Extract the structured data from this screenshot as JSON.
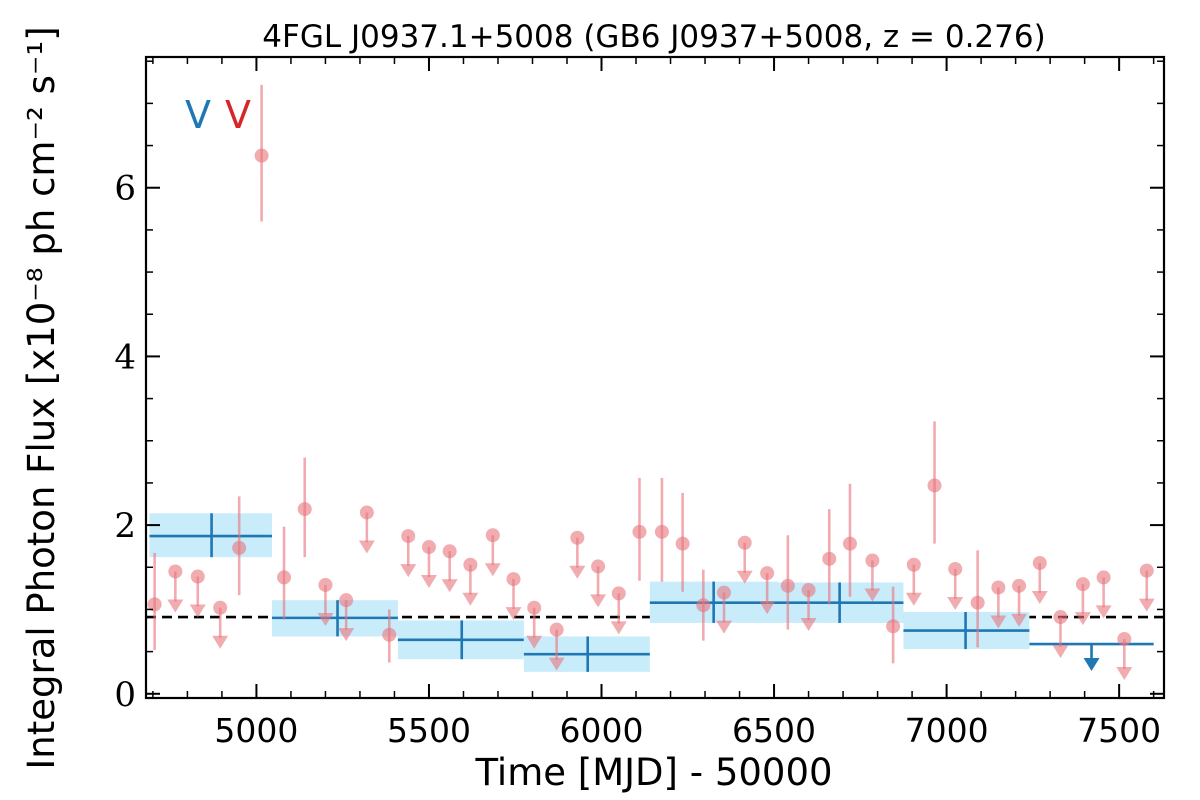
{
  "chart_data": {
    "type": "scatter",
    "title": "4FGL J0937.1+5008 (GB6 J0937+5008, z = 0.276)",
    "xlabel": "Time [MJD] - 50000",
    "ylabel": "Integral Photon Flux [x10⁻⁸ ph cm⁻² s⁻¹]",
    "xlim": [
      4680,
      7630
    ],
    "ylim": [
      -0.05,
      7.55
    ],
    "xticks": [
      "5000",
      "5500",
      "6000",
      "6500",
      "7000",
      "7500"
    ],
    "xtick_values": [
      5000,
      5500,
      6000,
      6500,
      7000,
      7500
    ],
    "yticks": [
      "0",
      "2",
      "4",
      "6"
    ],
    "ytick_values": [
      0,
      2,
      4,
      6
    ],
    "reference_level": 0.91,
    "markers": [
      {
        "text": "V",
        "color": "#1f77b4"
      },
      {
        "text": "V",
        "color": "#d62728"
      }
    ],
    "series": [
      {
        "color": "#1f77b4",
        "band_color": "#c9ecfb",
        "bins": [
          {
            "x": 4870,
            "x_lo": 4690,
            "x_hi": 5045,
            "y": 1.87,
            "y_lo": 1.62,
            "y_hi": 2.14
          },
          {
            "x": 5235,
            "x_lo": 5045,
            "x_hi": 5410,
            "y": 0.9,
            "y_lo": 0.68,
            "y_hi": 1.11
          },
          {
            "x": 5595,
            "x_lo": 5410,
            "x_hi": 5775,
            "y": 0.64,
            "y_lo": 0.41,
            "y_hi": 0.87
          },
          {
            "x": 5960,
            "x_lo": 5775,
            "x_hi": 6140,
            "y": 0.47,
            "y_lo": 0.26,
            "y_hi": 0.68
          },
          {
            "x": 6325,
            "x_lo": 6140,
            "x_hi": 6510,
            "y": 1.08,
            "y_lo": 0.84,
            "y_hi": 1.33
          },
          {
            "x": 6690,
            "x_lo": 6510,
            "x_hi": 6875,
            "y": 1.08,
            "y_lo": 0.84,
            "y_hi": 1.32
          },
          {
            "x": 7055,
            "x_lo": 6875,
            "x_hi": 7240,
            "y": 0.75,
            "y_lo": 0.53,
            "y_hi": 0.97
          }
        ],
        "upper_limits": [
          {
            "x": 7420,
            "x_lo": 7240,
            "x_hi": 7600,
            "y": 0.59
          }
        ]
      },
      {
        "color": "#e8747c",
        "points": [
          {
            "x": 4705,
            "y": 1.06,
            "y_lo": 0.52,
            "y_hi": 1.67
          },
          {
            "x": 4950,
            "y": 1.73,
            "y_lo": 1.17,
            "y_hi": 2.34
          },
          {
            "x": 5015,
            "y": 6.38,
            "y_lo": 5.6,
            "y_hi": 7.22
          },
          {
            "x": 5080,
            "y": 1.38,
            "y_lo": 0.88,
            "y_hi": 1.98
          },
          {
            "x": 5140,
            "y": 2.19,
            "y_lo": 1.62,
            "y_hi": 2.8
          },
          {
            "x": 5385,
            "y": 0.7,
            "y_lo": 0.37,
            "y_hi": 1.0
          },
          {
            "x": 6110,
            "y": 1.92,
            "y_lo": 1.34,
            "y_hi": 2.56
          },
          {
            "x": 6175,
            "y": 1.92,
            "y_lo": 1.33,
            "y_hi": 2.56
          },
          {
            "x": 6235,
            "y": 1.78,
            "y_lo": 1.21,
            "y_hi": 2.38
          },
          {
            "x": 6295,
            "y": 1.05,
            "y_lo": 0.63,
            "y_hi": 1.47
          },
          {
            "x": 6540,
            "y": 1.28,
            "y_lo": 0.76,
            "y_hi": 1.88
          },
          {
            "x": 6660,
            "y": 1.6,
            "y_lo": 1.06,
            "y_hi": 2.19
          },
          {
            "x": 6720,
            "y": 1.78,
            "y_lo": 1.15,
            "y_hi": 2.49
          },
          {
            "x": 6845,
            "y": 0.8,
            "y_lo": 0.36,
            "y_hi": 1.27
          },
          {
            "x": 6965,
            "y": 2.47,
            "y_lo": 1.78,
            "y_hi": 3.23
          },
          {
            "x": 7090,
            "y": 1.08,
            "y_lo": 0.55,
            "y_hi": 1.7
          }
        ],
        "upper_limits": [
          {
            "x": 4765,
            "y": 1.45
          },
          {
            "x": 4830,
            "y": 1.39
          },
          {
            "x": 4895,
            "y": 1.02
          },
          {
            "x": 5200,
            "y": 1.29
          },
          {
            "x": 5260,
            "y": 1.11
          },
          {
            "x": 5320,
            "y": 2.15
          },
          {
            "x": 5440,
            "y": 1.87
          },
          {
            "x": 5500,
            "y": 1.74
          },
          {
            "x": 5560,
            "y": 1.69
          },
          {
            "x": 5620,
            "y": 1.53
          },
          {
            "x": 5685,
            "y": 1.88
          },
          {
            "x": 5745,
            "y": 1.36
          },
          {
            "x": 5805,
            "y": 1.02
          },
          {
            "x": 5870,
            "y": 0.76
          },
          {
            "x": 5930,
            "y": 1.85
          },
          {
            "x": 5990,
            "y": 1.51
          },
          {
            "x": 6050,
            "y": 1.19
          },
          {
            "x": 6355,
            "y": 1.2
          },
          {
            "x": 6415,
            "y": 1.79
          },
          {
            "x": 6480,
            "y": 1.43
          },
          {
            "x": 6600,
            "y": 1.23
          },
          {
            "x": 6785,
            "y": 1.58
          },
          {
            "x": 6905,
            "y": 1.53
          },
          {
            "x": 7025,
            "y": 1.48
          },
          {
            "x": 7150,
            "y": 1.26
          },
          {
            "x": 7210,
            "y": 1.28
          },
          {
            "x": 7270,
            "y": 1.55
          },
          {
            "x": 7330,
            "y": 0.91
          },
          {
            "x": 7395,
            "y": 1.3
          },
          {
            "x": 7455,
            "y": 1.38
          },
          {
            "x": 7515,
            "y": 0.65
          },
          {
            "x": 7580,
            "y": 1.46
          }
        ]
      }
    ]
  }
}
